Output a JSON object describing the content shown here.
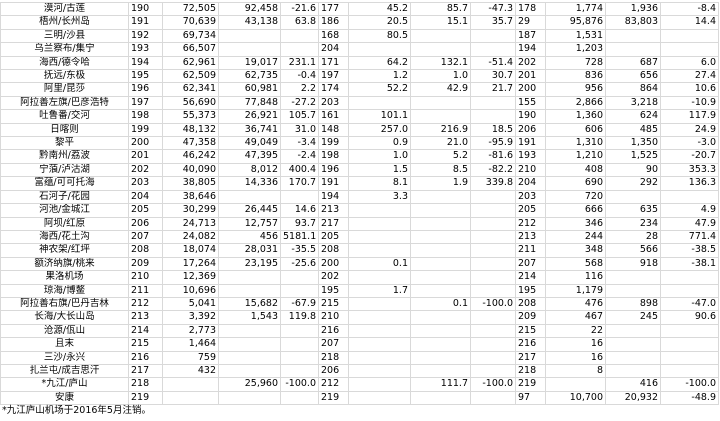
{
  "table": {
    "rows": [
      [
        "漠河/古莲",
        "190",
        "72,505",
        "92,458",
        "-21.6",
        "177",
        "45.2",
        "85.7",
        "-47.3",
        "178",
        "1,774",
        "1,936",
        "-8.4"
      ],
      [
        "梧州/长州岛",
        "191",
        "70,639",
        "43,138",
        "63.8",
        "186",
        "20.5",
        "15.1",
        "35.7",
        "29",
        "95,876",
        "83,803",
        "14.4"
      ],
      [
        "三明/沙县",
        "192",
        "69,734",
        null,
        null,
        "168",
        "80.5",
        null,
        null,
        "187",
        "1,531",
        null,
        null
      ],
      [
        "乌兰察布/集宁",
        "193",
        "66,507",
        null,
        null,
        "204",
        null,
        null,
        null,
        "194",
        "1,203",
        null,
        null
      ],
      [
        "海西/德令哈",
        "194",
        "62,961",
        "19,017",
        "231.1",
        "171",
        "64.2",
        "132.1",
        "-51.4",
        "202",
        "728",
        "687",
        "6.0"
      ],
      [
        "抚远/东极",
        "195",
        "62,509",
        "62,735",
        "-0.4",
        "197",
        "1.2",
        "1.0",
        "30.7",
        "201",
        "836",
        "656",
        "27.4"
      ],
      [
        "阿里/昆莎",
        "196",
        "62,341",
        "60,981",
        "2.2",
        "174",
        "52.2",
        "42.9",
        "21.7",
        "200",
        "956",
        "864",
        "10.6"
      ],
      [
        "阿拉善左旗/巴彦浩特",
        "197",
        "56,690",
        "77,848",
        "-27.2",
        "203",
        null,
        null,
        null,
        "155",
        "2,866",
        "3,218",
        "-10.9"
      ],
      [
        "吐鲁番/交河",
        "198",
        "55,373",
        "26,921",
        "105.7",
        "161",
        "101.1",
        null,
        null,
        "190",
        "1,360",
        "624",
        "117.9"
      ],
      [
        "日喀则",
        "199",
        "48,132",
        "36,741",
        "31.0",
        "148",
        "257.0",
        "216.9",
        "18.5",
        "206",
        "606",
        "485",
        "24.9"
      ],
      [
        "黎平",
        "200",
        "47,358",
        "49,049",
        "-3.4",
        "199",
        "0.9",
        "21.0",
        "-95.9",
        "191",
        "1,310",
        "1,350",
        "-3.0"
      ],
      [
        "黔南州/荔波",
        "201",
        "46,242",
        "47,395",
        "-2.4",
        "198",
        "1.0",
        "5.2",
        "-81.6",
        "193",
        "1,210",
        "1,525",
        "-20.7"
      ],
      [
        "宁蒗/泸沽湖",
        "202",
        "40,090",
        "8,012",
        "400.4",
        "196",
        "1.5",
        "8.5",
        "-82.2",
        "210",
        "408",
        "90",
        "353.3"
      ],
      [
        "富蕴/可可托海",
        "203",
        "38,805",
        "14,336",
        "170.7",
        "191",
        "8.1",
        "1.9",
        "339.8",
        "204",
        "690",
        "292",
        "136.3"
      ],
      [
        "石河子/花园",
        "204",
        "38,646",
        null,
        null,
        "194",
        "3.3",
        null,
        null,
        "203",
        "720",
        null,
        null
      ],
      [
        "河池/金城江",
        "205",
        "30,299",
        "26,445",
        "14.6",
        "213",
        null,
        null,
        null,
        "205",
        "666",
        "635",
        "4.9"
      ],
      [
        "阿坝/红原",
        "206",
        "24,713",
        "12,757",
        "93.7",
        "217",
        null,
        null,
        null,
        "212",
        "346",
        "234",
        "47.9"
      ],
      [
        "海西/花土沟",
        "207",
        "24,082",
        "456",
        "5181.1",
        "205",
        null,
        null,
        null,
        "213",
        "244",
        "28",
        "771.4"
      ],
      [
        "神农架/红坪",
        "208",
        "18,074",
        "28,031",
        "-35.5",
        "208",
        null,
        null,
        null,
        "211",
        "348",
        "566",
        "-38.5"
      ],
      [
        "额济纳旗/桃来",
        "209",
        "17,264",
        "23,195",
        "-25.6",
        "200",
        "0.1",
        null,
        null,
        "207",
        "568",
        "918",
        "-38.1"
      ],
      [
        "果洛机场",
        "210",
        "12,369",
        null,
        null,
        "202",
        null,
        null,
        null,
        "214",
        "116",
        null,
        null
      ],
      [
        "琼海/博鳌",
        "211",
        "10,696",
        null,
        null,
        "195",
        "1.7",
        null,
        null,
        "195",
        "1,179",
        null,
        null
      ],
      [
        "阿拉善右旗/巴丹吉林",
        "212",
        "5,041",
        "15,682",
        "-67.9",
        "215",
        null,
        "0.1",
        "-100.0",
        "208",
        "476",
        "898",
        "-47.0"
      ],
      [
        "长海/大长山岛",
        "213",
        "3,392",
        "1,543",
        "119.8",
        "210",
        null,
        null,
        null,
        "209",
        "467",
        "245",
        "90.6"
      ],
      [
        "沧源/佤山",
        "214",
        "2,773",
        null,
        null,
        "216",
        null,
        null,
        null,
        "215",
        "22",
        null,
        null
      ],
      [
        "且末",
        "215",
        "1,464",
        null,
        null,
        "207",
        null,
        null,
        null,
        "216",
        "16",
        null,
        null
      ],
      [
        "三沙/永兴",
        "216",
        "759",
        null,
        null,
        "218",
        null,
        null,
        null,
        "217",
        "16",
        null,
        null
      ],
      [
        "扎兰屯/成吉思汗",
        "217",
        "432",
        null,
        null,
        "206",
        null,
        null,
        null,
        "218",
        "8",
        null,
        null
      ],
      [
        "*九江/庐山",
        "218",
        null,
        "25,960",
        "-100.0",
        "212",
        null,
        "111.7",
        "-100.0",
        "219",
        null,
        "416",
        "-100.0"
      ],
      [
        "安康",
        "219",
        null,
        null,
        null,
        "219",
        null,
        null,
        null,
        "97",
        "10,700",
        "20,932",
        "-48.9"
      ]
    ],
    "footnote": "*九江庐山机场于2016年5月注销。"
  }
}
